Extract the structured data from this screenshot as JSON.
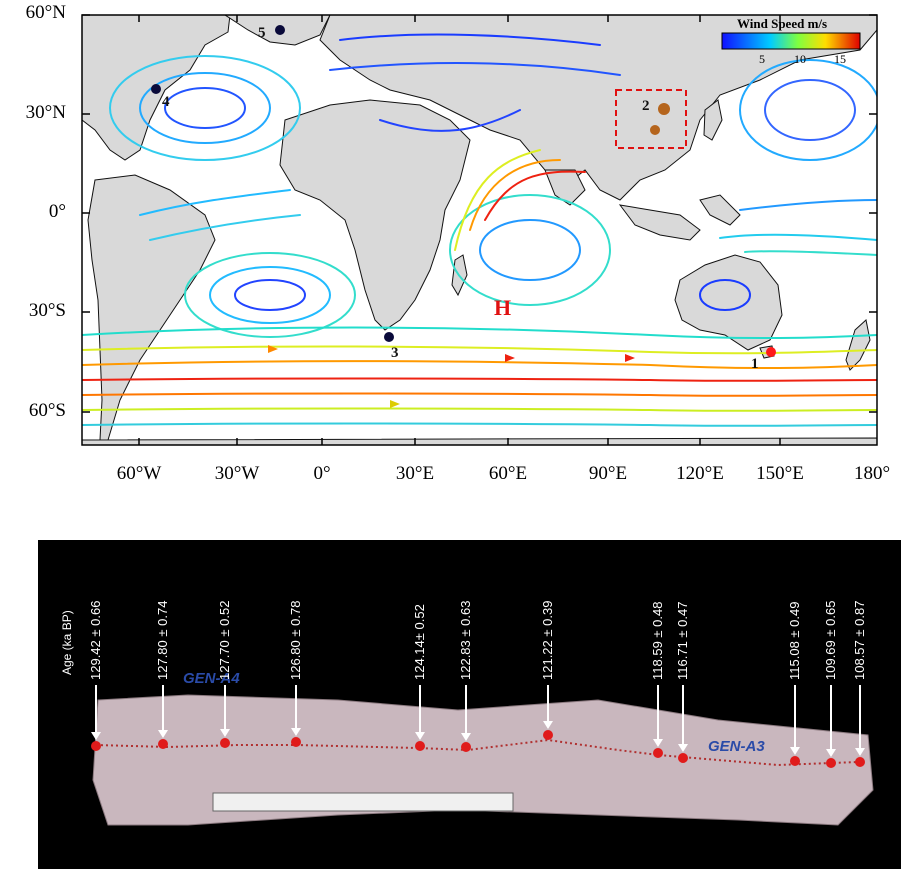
{
  "map": {
    "lat_labels": [
      "60°N",
      "30°N",
      "0°",
      "30°S",
      "60°S"
    ],
    "lon_labels": [
      "60°W",
      "30°W",
      "0°",
      "30°E",
      "60°E",
      "90°E",
      "120°E",
      "150°E",
      "180°"
    ],
    "legend": {
      "title": "Wind Speed m/s",
      "ticks": [
        "5",
        "10",
        "15"
      ]
    },
    "sites": [
      "1",
      "2",
      "3",
      "4",
      "5"
    ],
    "high_label": "H"
  },
  "core": {
    "axis_label": "Age (ka BP)",
    "ages": [
      "129.42 ± 0.66",
      "127.80 ± 0.74",
      "127.70 ± 0.52",
      "126.80 ± 0.78",
      "124.14± 0.52",
      "122.83 ± 0.63",
      "121.22 ± 0.39",
      "118.59 ± 0.48",
      "116.71 ± 0.47",
      "115.08 ± 0.49",
      "109.69 ± 0.65",
      "108.57 ± 0.87"
    ],
    "handwritten": [
      "GEN-A4",
      "GEN-A3"
    ]
  },
  "colors": {
    "slow": "#1a1aff",
    "mid": "#22d3b0",
    "fast": "#e8201a",
    "land": "#d9d9d9"
  }
}
